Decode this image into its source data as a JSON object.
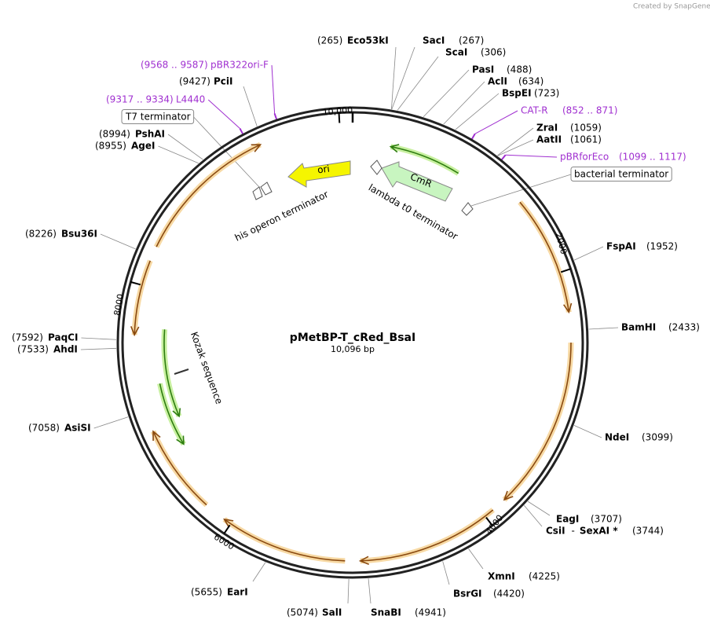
{
  "watermark": "Created by SnapGene",
  "plasmid": {
    "name": "pMetBP-T_cRed_BsaI",
    "size": "10,096 bp"
  },
  "tick_labels": [
    "10,000",
    "2000",
    "4000",
    "6000",
    "8000"
  ],
  "sites": [
    {
      "name": "Eco53kI",
      "position": "(265)"
    },
    {
      "name": "SacI",
      "position": "(267)"
    },
    {
      "name": "ScaI",
      "position": "(306)"
    },
    {
      "name": "PasI",
      "position": "(488)"
    },
    {
      "name": "AclI",
      "position": "(634)"
    },
    {
      "name": "BspEI",
      "position": "(723)"
    },
    {
      "name": "ZraI",
      "position": "(1059)"
    },
    {
      "name": "AatII",
      "position": "(1061)"
    },
    {
      "name": "FspAI",
      "position": "(1952)"
    },
    {
      "name": "BamHI",
      "position": "(2433)"
    },
    {
      "name": "NdeI",
      "position": "(3099)"
    },
    {
      "name": "EagI",
      "position": "(3707)"
    },
    {
      "name": "CsiI",
      "separator": "-",
      "name_2": "SexAI *",
      "position": "(3744)"
    },
    {
      "name": "XmnI",
      "position": "(4225)"
    },
    {
      "name": "BsrGI",
      "position": "(4420)"
    },
    {
      "name": "SnaBI",
      "position": "(4941)"
    },
    {
      "name": "SalI",
      "position": "(5074)"
    },
    {
      "name": "EarI",
      "position": "(5655)"
    },
    {
      "name": "AsiSI",
      "position": "(7058)"
    },
    {
      "name": "AhdI",
      "position": "(7533)"
    },
    {
      "name": "PaqCI",
      "position": "(7592)"
    },
    {
      "name": "Bsu36I",
      "position": "(8226)"
    },
    {
      "name": "AgeI",
      "position": "(8955)"
    },
    {
      "name": "PshAI",
      "position": "(8994)"
    },
    {
      "name": "PciI",
      "position": "(9427)"
    }
  ],
  "primers": [
    {
      "name": "CAT-R",
      "position": "(852 .. 871)"
    },
    {
      "name": "pBRforEco",
      "position": "(1099 .. 1117)"
    },
    {
      "name": "L4440",
      "position": "(9317 .. 9334)"
    },
    {
      "name": "pBR322ori-F",
      "position": "(9568 .. 9587)"
    }
  ],
  "boxed_features": [
    "bacterial terminator",
    "T7 terminator"
  ],
  "features": [
    "ori",
    "CmR",
    "lambda t0 terminator",
    "his operon terminator",
    "Kozak sequence"
  ]
}
